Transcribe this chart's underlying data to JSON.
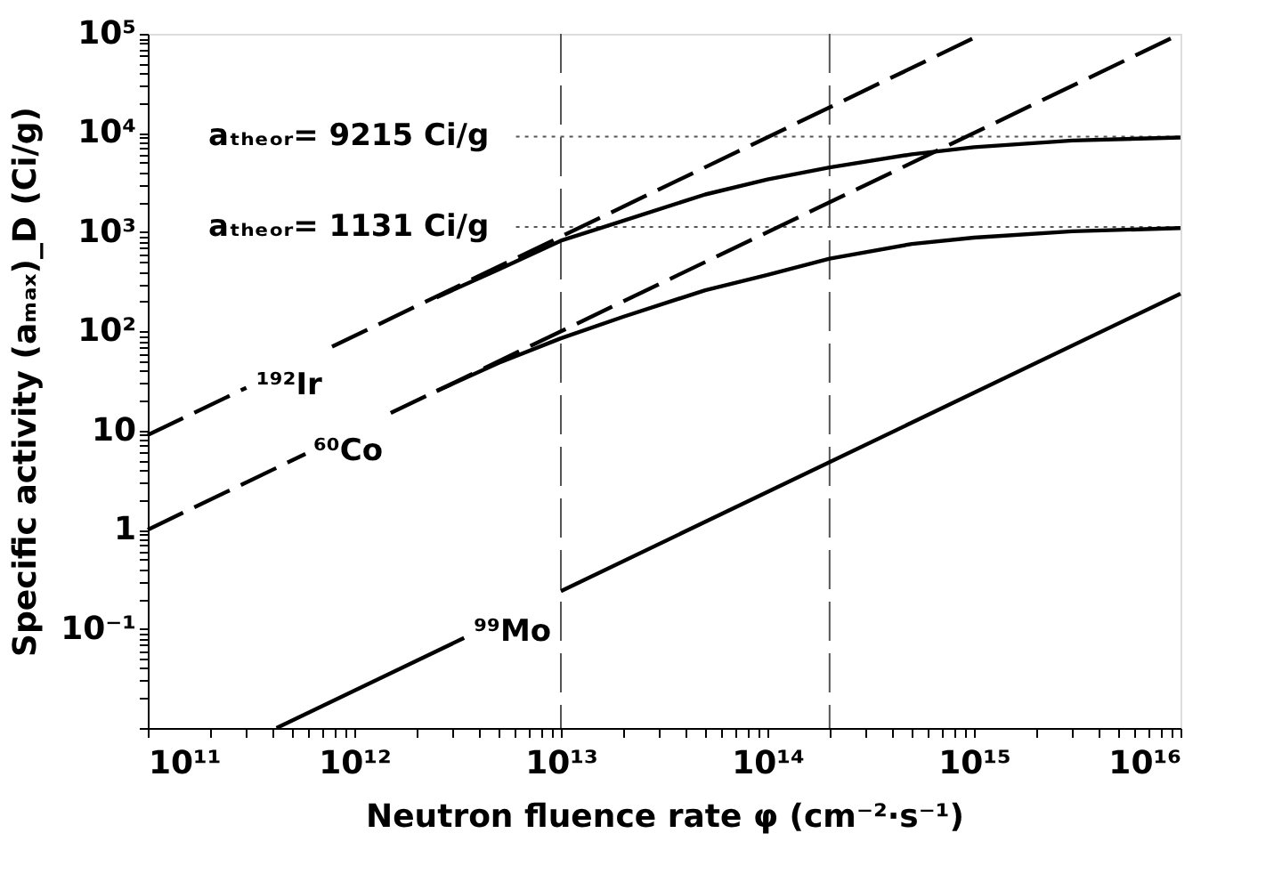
{
  "chart_data": {
    "type": "line",
    "xlabel": "Neutron fluence rate φ  (cm⁻²·s⁻¹)",
    "ylabel": "Specific activity  (aₘₐₓ)_D  (Ci/g)",
    "xlim": [
      100000000000.0,
      1e+16
    ],
    "ylim": [
      0.01,
      100000.0
    ],
    "xticks": [
      {
        "value": 100000000000.0,
        "label": "10¹¹"
      },
      {
        "value": 200000000000.0,
        "label": null
      },
      {
        "value": 300000000000.0,
        "label": null
      },
      {
        "value": 400000000000.0,
        "label": null
      },
      {
        "value": 500000000000.0,
        "label": null
      },
      {
        "value": 600000000000.0,
        "label": null
      },
      {
        "value": 700000000000.0,
        "label": null
      },
      {
        "value": 800000000000.0,
        "label": null
      },
      {
        "value": 900000000000.0,
        "label": null
      },
      {
        "value": 1000000000000.0,
        "label": "10¹²"
      },
      {
        "value": 2000000000000.0,
        "label": null
      },
      {
        "value": 3000000000000.0,
        "label": null
      },
      {
        "value": 4000000000000.0,
        "label": null
      },
      {
        "value": 5000000000000.0,
        "label": null
      },
      {
        "value": 6000000000000.0,
        "label": null
      },
      {
        "value": 7000000000000.0,
        "label": null
      },
      {
        "value": 8000000000000.0,
        "label": null
      },
      {
        "value": 9000000000000.0,
        "label": null
      },
      {
        "value": 10000000000000.0,
        "label": "10¹³"
      },
      {
        "value": 20000000000000.0,
        "label": null
      },
      {
        "value": 30000000000000.0,
        "label": null
      },
      {
        "value": 40000000000000.0,
        "label": null
      },
      {
        "value": 50000000000000.0,
        "label": null
      },
      {
        "value": 60000000000000.0,
        "label": null
      },
      {
        "value": 70000000000000.0,
        "label": null
      },
      {
        "value": 80000000000000.0,
        "label": null
      },
      {
        "value": 90000000000000.0,
        "label": null
      },
      {
        "value": 100000000000000.0,
        "label": "10¹⁴"
      },
      {
        "value": 200000000000000.0,
        "label": null
      },
      {
        "value": 300000000000000.0,
        "label": null
      },
      {
        "value": 400000000000000.0,
        "label": null
      },
      {
        "value": 500000000000000.0,
        "label": null
      },
      {
        "value": 600000000000000.0,
        "label": null
      },
      {
        "value": 700000000000000.0,
        "label": null
      },
      {
        "value": 800000000000000.0,
        "label": null
      },
      {
        "value": 900000000000000.0,
        "label": null
      },
      {
        "value": 1000000000000000.0,
        "label": "10¹⁵"
      },
      {
        "value": 2000000000000000.0,
        "label": null
      },
      {
        "value": 3000000000000000.0,
        "label": null
      },
      {
        "value": 4000000000000000.0,
        "label": null
      },
      {
        "value": 5000000000000000.0,
        "label": null
      },
      {
        "value": 6000000000000000.0,
        "label": null
      },
      {
        "value": 7000000000000000.0,
        "label": null
      },
      {
        "value": 8000000000000000.0,
        "label": null
      },
      {
        "value": 9000000000000000.0,
        "label": null
      },
      {
        "value": 1e+16,
        "label": "10¹⁶"
      }
    ],
    "yticks": [
      {
        "value": 0.01,
        "label": null
      },
      {
        "value": 0.02,
        "label": null
      },
      {
        "value": 0.03,
        "label": null
      },
      {
        "value": 0.04,
        "label": null
      },
      {
        "value": 0.05,
        "label": null
      },
      {
        "value": 0.06,
        "label": null
      },
      {
        "value": 0.07,
        "label": null
      },
      {
        "value": 0.08,
        "label": null
      },
      {
        "value": 0.09,
        "label": null
      },
      {
        "value": 0.1,
        "label": "10⁻¹"
      },
      {
        "value": 0.2,
        "label": null
      },
      {
        "value": 0.3,
        "label": null
      },
      {
        "value": 0.4,
        "label": null
      },
      {
        "value": 0.5,
        "label": null
      },
      {
        "value": 0.6,
        "label": null
      },
      {
        "value": 0.7,
        "label": null
      },
      {
        "value": 0.8,
        "label": null
      },
      {
        "value": 0.9,
        "label": null
      },
      1,
      {
        "value": 2,
        "label": null
      },
      {
        "value": 3,
        "label": null
      },
      {
        "value": 4,
        "label": null
      },
      {
        "value": 5,
        "label": null
      },
      {
        "value": 6,
        "label": null
      },
      {
        "value": 7,
        "label": null
      },
      {
        "value": 8,
        "label": null
      },
      {
        "value": 9,
        "label": null
      },
      10,
      {
        "value": 20,
        "label": null
      },
      {
        "value": 30,
        "label": null
      },
      {
        "value": 40,
        "label": null
      },
      {
        "value": 50,
        "label": null
      },
      {
        "value": 60,
        "label": null
      },
      {
        "value": 70,
        "label": null
      },
      {
        "value": 80,
        "label": null
      },
      {
        "value": 90,
        "label": null
      },
      {
        "value": 100,
        "label": "10²"
      },
      {
        "value": 200,
        "label": null
      },
      {
        "value": 300,
        "label": null
      },
      {
        "value": 400,
        "label": null
      },
      {
        "value": 500,
        "label": null
      },
      {
        "value": 600,
        "label": null
      },
      {
        "value": 700,
        "label": null
      },
      {
        "value": 800,
        "label": null
      },
      {
        "value": 900,
        "label": null
      },
      {
        "value": 1000,
        "label": "10³"
      },
      {
        "value": 2000,
        "label": null
      },
      {
        "value": 3000,
        "label": null
      },
      {
        "value": 4000,
        "label": null
      },
      {
        "value": 5000,
        "label": null
      },
      {
        "value": 6000,
        "label": null
      },
      {
        "value": 7000,
        "label": null
      },
      {
        "value": 8000,
        "label": null
      },
      {
        "value": 9000,
        "label": null
      },
      {
        "value": 10000,
        "label": "10⁴"
      },
      {
        "value": 20000,
        "label": null
      },
      {
        "value": 30000,
        "label": null
      },
      {
        "value": 40000,
        "label": null
      },
      {
        "value": 50000,
        "label": null
      },
      {
        "value": 60000,
        "label": null
      },
      {
        "value": 70000,
        "label": null
      },
      {
        "value": 80000,
        "label": null
      },
      {
        "value": 90000,
        "label": null
      },
      {
        "value": 100000,
        "label": "10⁵"
      }
    ],
    "log": "xy",
    "grid": false,
    "marker": "none",
    "series": [
      {
        "name": "¹⁹²Ir",
        "color": "#000000",
        "line_style": "dashed",
        "x": [
          100000000000.0,
          300000000000.0,
          500000000000.0,
          780000000000.0,
          1100000000000000.0
        ],
        "values": [
          9,
          27,
          null,
          70,
          100000
        ]
      },
      {
        "name": "⁶⁰Co",
        "color": "#000000",
        "line_style": "dashed",
        "x": [
          100000000000.0,
          580000000000.0,
          900000000000.0,
          1500000000000.0,
          1e+16
        ],
        "values": [
          1,
          5.8,
          null,
          15,
          100000
        ]
      },
      {
        "name": "⁹⁹Mo",
        "color": "#000000",
        "line_style": "solid",
        "x": [
          420000000000.0,
          3400000000000.0,
          6000000000000.0,
          10000000000000.0,
          1e+16
        ],
        "values": [
          0.01,
          0.081,
          null,
          0.24,
          240
        ]
      },
      {
        "color": "#000000",
        "line_style": "solid",
        "x": [
          2500000000000.0,
          5000000000000.0,
          10000000000000.0,
          20000000000000.0,
          50000000000000.0,
          100000000000000.0,
          200000000000000.0,
          500000000000000.0,
          1000000000000000.0,
          3000000000000000.0,
          1e+16
        ],
        "values": [
          220,
          420,
          820,
          1300,
          2400,
          3400,
          4500,
          6100,
          7200,
          8400,
          9000
        ]
      },
      {
        "color": "#000000",
        "line_style": "solid",
        "x": [
          2500000000000.0,
          5000000000000.0,
          10000000000000.0,
          20000000000000.0,
          50000000000000.0,
          100000000000000.0,
          200000000000000.0,
          500000000000000.0,
          1000000000000000.0,
          3000000000000000.0,
          1e+16
        ],
        "values": [
          25,
          48,
          85,
          140,
          260,
          370,
          540,
          760,
          880,
          1020,
          1100
        ]
      }
    ],
    "ref_lines": [
      {
        "axis": "y",
        "value": 9215,
        "label": "aₜₕₑₒᵣ= 9215  Ci/g",
        "color": "#555555",
        "line_style": "dotted"
      },
      {
        "axis": "y",
        "value": 1131,
        "label": "aₜₕₑₒᵣ= 1131  Ci/g",
        "color": "#555555",
        "line_style": "dotted"
      },
      {
        "axis": "x",
        "value": 10000000000000.0,
        "color": "#555555",
        "line_style": "dashed"
      },
      {
        "axis": "x",
        "value": 200000000000000.0,
        "color": "#555555",
        "line_style": "dashed"
      }
    ]
  }
}
